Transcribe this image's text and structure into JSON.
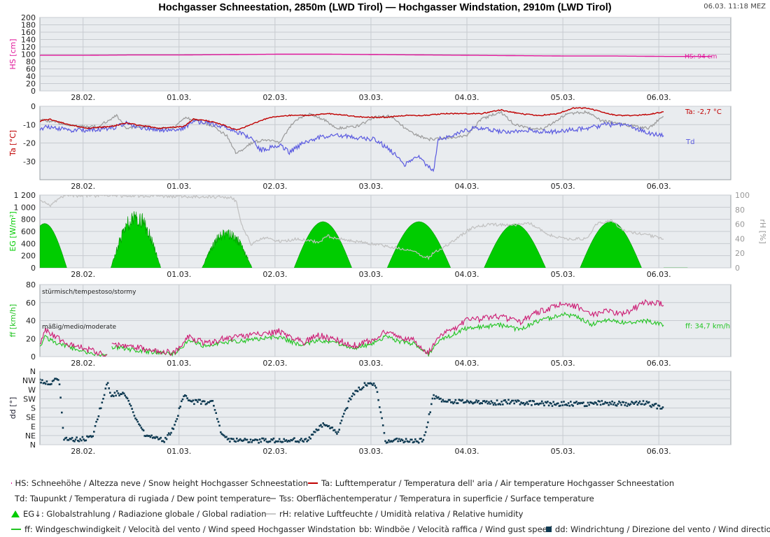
{
  "header": {
    "title": "Hochgasser Schneestation, 2850m (LWD Tirol) — Hochgasser Windstation, 2910m (LWD Tirol)",
    "timestamp": "06.03. 11:18 MEZ"
  },
  "colors": {
    "hs": "#e0169a",
    "ta": "#c00000",
    "td": "#5a5ae0",
    "tss": "#9a9a9a",
    "rh": "#c0c0c0",
    "eg": "#00cc00",
    "ff": "#22c422",
    "bb": "#cc1b73",
    "dd": "#0f3a52",
    "panel_bg": "#e9ecef",
    "grid": "#c7cbd0"
  },
  "legend": {
    "rows": [
      [
        {
          "label": "HS: Schneehöhe / Altezza neve / Snow height  Hochgasser Schneestation",
          "symbol": "line",
          "color": "#e0169a"
        },
        {
          "label": "Ta: Lufttemperatur / Temperatura dell' aria / Air temperature  Hochgasser Schneestation",
          "symbol": "line",
          "color": "#c00000"
        }
      ],
      [
        {
          "label": "Td: Taupunkt / Temperatura di rugiada / Dew point temperature",
          "symbol": "line",
          "color": "#5a5ae0"
        },
        {
          "label": "Tss: Oberflächentemperatur / Temperatura in superficie / Surface temperature",
          "symbol": "line",
          "color": "#9a9a9a"
        }
      ],
      [
        {
          "label": "EG↓: Globalstrahlung / Radiazione globale / Global radiation",
          "symbol": "triangle",
          "color": "#00cc00"
        },
        {
          "label": "rH: relative Luftfeuchte / Umidità relativa / Relative humidity",
          "symbol": "line",
          "color": "#c8c8c8"
        }
      ],
      [
        {
          "label": "ff: Windgeschwindigkeit / Velocità del vento / Wind speed  Hochgasser Windstation",
          "symbol": "line",
          "color": "#22c422"
        },
        {
          "label": "bb: Windböe / Velocità raffica / Wind gust speed",
          "symbol": "line",
          "color": "#cc1b73"
        },
        {
          "label": "dd: Windrichtung / Direzione del vento / Wind direction",
          "symbol": "square",
          "color": "#0f3a52"
        }
      ]
    ]
  },
  "chart_data": [
    {
      "id": "hs",
      "type": "line",
      "ylabel": "HS [cm]",
      "ylim": [
        0,
        200
      ],
      "yticks": [
        0,
        20,
        40,
        60,
        80,
        100,
        120,
        140,
        160,
        180,
        200
      ],
      "grid": true,
      "x_range_days": [
        0,
        7.2
      ],
      "x_ticks": [
        "28.02.",
        "01.03.",
        "02.03.",
        "03.03.",
        "04.03.",
        "05.03.",
        "06.03."
      ],
      "end_label": "HS: 94 cm",
      "series": [
        {
          "name": "HS",
          "x": [
            0.0,
            0.5,
            1.0,
            1.5,
            2.0,
            2.5,
            3.0,
            3.5,
            4.0,
            4.5,
            5.0,
            5.5,
            6.0,
            6.5,
            7.0
          ],
          "values": [
            97,
            97,
            98,
            98,
            99,
            100,
            100,
            99,
            98,
            97,
            96,
            95,
            95,
            94,
            94
          ]
        }
      ]
    },
    {
      "id": "temp",
      "type": "line",
      "ylabel": "Ta [°C]",
      "ylim": [
        -40,
        0
      ],
      "yticks": [
        0,
        -10,
        -20,
        -30
      ],
      "grid": true,
      "x_range_days": [
        0,
        7.2
      ],
      "x_ticks": [
        "28.02.",
        "01.03.",
        "02.03.",
        "03.03.",
        "04.03.",
        "05.03.",
        "06.03."
      ],
      "end_labels": {
        "ta": "Ta: -2,7 °C",
        "td": "Td"
      },
      "series": [
        {
          "name": "Ta",
          "x": [
            0.0,
            0.1,
            0.3,
            0.5,
            0.75,
            0.9,
            1.0,
            1.25,
            1.5,
            1.6,
            1.75,
            1.9,
            2.05,
            2.2,
            2.4,
            2.6,
            2.8,
            3.0,
            3.2,
            3.4,
            3.6,
            3.8,
            4.0,
            4.2,
            4.4,
            4.6,
            4.8,
            5.0,
            5.2,
            5.4,
            5.55,
            5.7,
            5.85,
            6.0,
            6.2,
            6.4,
            6.5
          ],
          "values": [
            -8,
            -7,
            -10,
            -12,
            -11,
            -9,
            -10,
            -12,
            -11,
            -7,
            -8,
            -10,
            -13,
            -10,
            -6,
            -5,
            -5,
            -4,
            -5,
            -6,
            -6,
            -5,
            -5,
            -4,
            -4,
            -4,
            -2,
            -4,
            -5,
            -4,
            -1,
            -1,
            -3,
            -5,
            -5,
            -4,
            -3
          ]
        },
        {
          "name": "Td",
          "x": [
            0.0,
            0.1,
            0.3,
            0.5,
            0.75,
            0.9,
            1.0,
            1.25,
            1.5,
            1.6,
            1.75,
            1.9,
            2.05,
            2.2,
            2.3,
            2.5,
            2.6,
            2.75,
            2.9,
            3.1,
            3.3,
            3.5,
            3.7,
            3.8,
            3.95,
            4.1,
            4.15,
            4.3,
            4.5,
            4.7,
            4.9,
            5.1,
            5.3,
            5.5,
            5.7,
            5.9,
            6.1,
            6.3,
            6.5
          ],
          "values": [
            -12,
            -11,
            -13,
            -13,
            -12,
            -9,
            -11,
            -13,
            -12,
            -8,
            -9,
            -11,
            -14,
            -17,
            -24,
            -21,
            -25,
            -20,
            -17,
            -16,
            -17,
            -18,
            -26,
            -32,
            -27,
            -36,
            -18,
            -16,
            -12,
            -13,
            -14,
            -13,
            -14,
            -13,
            -12,
            -10,
            -10,
            -14,
            -16
          ]
        },
        {
          "name": "Tss",
          "x": [
            0.0,
            0.2,
            0.4,
            0.6,
            0.8,
            0.9,
            1.0,
            1.2,
            1.4,
            1.5,
            1.65,
            1.8,
            1.95,
            2.05,
            2.2,
            2.35,
            2.5,
            2.65,
            2.8,
            2.95,
            3.1,
            3.3,
            3.5,
            3.65,
            3.85,
            4.05,
            4.25,
            4.45,
            4.6,
            4.8,
            4.95,
            5.1,
            5.25,
            5.5,
            5.7,
            5.85,
            6.0,
            6.2,
            6.35,
            6.5
          ],
          "values": [
            -7,
            -9,
            -11,
            -11,
            -5,
            -12,
            -11,
            -12,
            -12,
            -6,
            -8,
            -11,
            -16,
            -26,
            -20,
            -18,
            -20,
            -8,
            -4,
            -7,
            -12,
            -11,
            -6,
            -5,
            -14,
            -18,
            -17,
            -16,
            -7,
            -3,
            -10,
            -12,
            -12,
            -4,
            -3,
            -8,
            -9,
            -11,
            -12,
            -5
          ]
        }
      ]
    },
    {
      "id": "radiation",
      "type": "area",
      "ylabel": "EG [W/m²]",
      "ylabel_right": "rH [%]",
      "ylim": [
        0,
        1200
      ],
      "yticks": [
        0,
        200,
        400,
        600,
        800,
        1000,
        1200
      ],
      "y2lim": [
        0,
        100
      ],
      "y2ticks": [
        0,
        20,
        40,
        60,
        80,
        100
      ],
      "grid": true,
      "x_range_days": [
        0,
        7.2
      ],
      "x_ticks": [
        "28.02.",
        "01.03.",
        "02.03.",
        "03.03.",
        "04.03.",
        "05.03.",
        "06.03."
      ],
      "series": [
        {
          "name": "EG↓",
          "day_peaks_wm2": [
            730,
            900,
            620,
            760,
            760,
            720,
            760,
            720
          ],
          "day_centers": [
            0.05,
            1.0,
            1.95,
            2.95,
            3.95,
            4.95,
            5.95,
            6.95
          ],
          "day_halfwidths": [
            0.23,
            0.26,
            0.26,
            0.3,
            0.33,
            0.32,
            0.32,
            0.2
          ]
        },
        {
          "name": "rH",
          "x": [
            0.0,
            0.1,
            0.25,
            0.5,
            1.0,
            1.5,
            2.0,
            2.05,
            2.1,
            2.2,
            2.35,
            2.5,
            2.7,
            2.9,
            3.0,
            3.1,
            3.3,
            3.5,
            3.7,
            3.9,
            4.0,
            4.05,
            4.1,
            4.2,
            4.3,
            4.5,
            4.7,
            4.9,
            5.1,
            5.3,
            5.5,
            5.7,
            5.8,
            5.95,
            6.1,
            6.3,
            6.5
          ],
          "values": [
            95,
            85,
            99,
            99,
            99,
            98,
            97,
            90,
            60,
            32,
            42,
            36,
            40,
            35,
            44,
            40,
            36,
            32,
            28,
            22,
            15,
            14,
            20,
            28,
            36,
            55,
            60,
            58,
            62,
            45,
            40,
            40,
            60,
            65,
            50,
            46,
            40
          ]
        }
      ]
    },
    {
      "id": "wind",
      "type": "line",
      "ylabel": "ff [km/h]",
      "ylim": [
        0,
        80
      ],
      "yticks": [
        0,
        20,
        40,
        60,
        80
      ],
      "grid": true,
      "x_range_days": [
        0,
        7.2
      ],
      "x_ticks": [
        "28.02.",
        "01.03.",
        "02.03.",
        "03.03.",
        "04.03.",
        "05.03.",
        "06.03."
      ],
      "annotations": [
        "stürmisch/tempestoso/stormy",
        "mäßig/medio/moderate"
      ],
      "end_label": "ff: 34,7 km/h",
      "series": [
        {
          "name": "bb",
          "x": [
            0.0,
            0.05,
            0.15,
            0.3,
            0.5,
            0.7,
            0.75,
            1.0,
            1.2,
            1.4,
            1.55,
            1.75,
            1.9,
            2.1,
            2.3,
            2.5,
            2.6,
            2.75,
            2.9,
            3.1,
            3.3,
            3.5,
            3.6,
            3.75,
            3.9,
            4.05,
            4.15,
            4.3,
            4.45,
            4.6,
            4.8,
            5.0,
            5.15,
            5.3,
            5.45,
            5.6,
            5.75,
            5.9,
            6.1,
            6.3,
            6.5
          ],
          "values": [
            14,
            30,
            22,
            14,
            8,
            2,
            15,
            10,
            7,
            4,
            22,
            14,
            20,
            22,
            25,
            28,
            22,
            16,
            24,
            18,
            12,
            20,
            28,
            22,
            18,
            4,
            22,
            30,
            40,
            42,
            45,
            38,
            48,
            53,
            60,
            55,
            46,
            50,
            48,
            60,
            59
          ]
        },
        {
          "name": "ff",
          "x": [
            0.0,
            0.05,
            0.15,
            0.3,
            0.5,
            0.7,
            0.75,
            1.0,
            1.2,
            1.4,
            1.55,
            1.75,
            1.9,
            2.1,
            2.3,
            2.5,
            2.6,
            2.75,
            2.9,
            3.1,
            3.3,
            3.5,
            3.6,
            3.75,
            3.9,
            4.05,
            4.15,
            4.3,
            4.45,
            4.6,
            4.8,
            5.0,
            5.15,
            5.3,
            5.45,
            5.6,
            5.75,
            5.9,
            6.1,
            6.3,
            6.5
          ],
          "values": [
            10,
            22,
            16,
            10,
            5,
            1,
            11,
            7,
            5,
            3,
            17,
            11,
            16,
            17,
            20,
            22,
            17,
            12,
            19,
            14,
            9,
            16,
            22,
            17,
            14,
            3,
            17,
            24,
            32,
            33,
            35,
            30,
            38,
            42,
            48,
            44,
            36,
            40,
            38,
            40,
            35
          ]
        }
      ]
    },
    {
      "id": "direction",
      "type": "scatter",
      "ylabel": "dd [°]",
      "ylim": [
        0,
        360
      ],
      "yticks": [
        "N",
        "NE",
        "E",
        "SE",
        "S",
        "SW",
        "W",
        "NW",
        "N"
      ],
      "grid": true,
      "x_range_days": [
        0,
        7.2
      ],
      "x_ticks": [
        "28.02.",
        "01.03.",
        "02.03.",
        "03.03.",
        "04.03.",
        "05.03.",
        "06.03."
      ],
      "series": [
        {
          "name": "dd",
          "x": [
            0.0,
            0.1,
            0.2,
            0.25,
            0.3,
            0.4,
            0.55,
            0.7,
            0.75,
            0.8,
            0.9,
            1.0,
            1.1,
            1.2,
            1.3,
            1.4,
            1.5,
            1.6,
            1.7,
            1.8,
            1.9,
            2.0,
            2.1,
            2.2,
            2.4,
            2.6,
            2.8,
            2.95,
            3.1,
            3.25,
            3.4,
            3.5,
            3.6,
            3.7,
            3.8,
            3.9,
            4.0,
            4.1,
            4.15,
            4.2,
            4.3,
            4.5,
            4.7,
            4.9,
            5.1,
            5.3,
            5.5,
            5.7,
            5.9,
            6.1,
            6.3,
            6.5
          ],
          "values": [
            315,
            305,
            318,
            20,
            30,
            25,
            35,
            305,
            230,
            255,
            240,
            130,
            45,
            40,
            20,
            90,
            240,
            210,
            210,
            205,
            40,
            20,
            20,
            20,
            20,
            20,
            25,
            100,
            60,
            245,
            300,
            300,
            20,
            20,
            20,
            20,
            20,
            240,
            230,
            220,
            210,
            210,
            205,
            210,
            205,
            200,
            200,
            200,
            205,
            200,
            205,
            180
          ]
        }
      ]
    }
  ]
}
